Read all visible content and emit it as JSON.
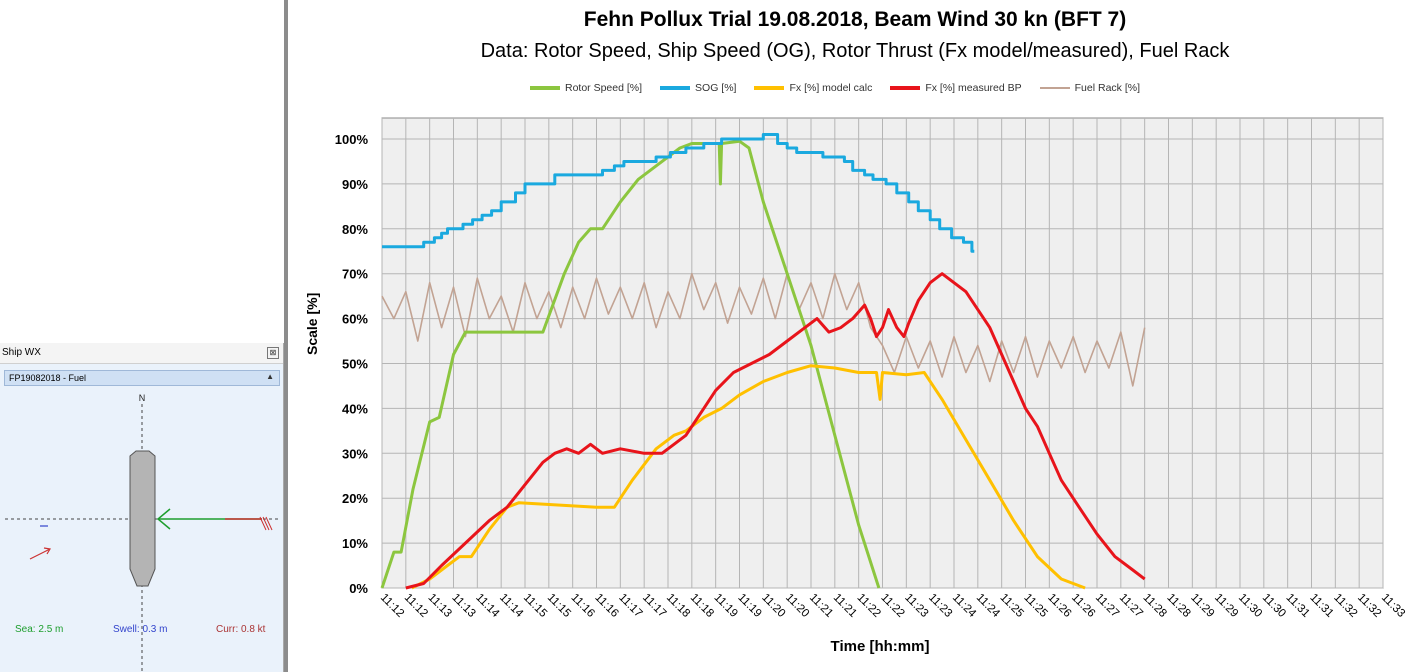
{
  "panel": {
    "title": "Ship WX",
    "close_glyph": "⊠",
    "dropdown_value": "FP19082018 - Fuel",
    "north_label": "N",
    "sea": "Sea: 2.5 m",
    "swell": "Swell: 0.3 m",
    "curr": "Curr: 0.8 kt"
  },
  "chart_data": {
    "type": "line",
    "title": "Fehn Pollux Trial 19.08.2018, Beam Wind 30 kn (BFT 7)",
    "subtitle": "Data: Rotor Speed, Ship Speed (OG), Rotor Thrust (Fx model/measured), Fuel Rack",
    "xlabel": "Time [hh:mm]",
    "ylabel": "Scale [%]",
    "ylim": [
      0,
      100
    ],
    "yticks": [
      "0%",
      "10%",
      "20%",
      "30%",
      "40%",
      "50%",
      "60%",
      "70%",
      "80%",
      "90%",
      "100%"
    ],
    "xticks": [
      "11:12",
      "11:12",
      "11:13",
      "11:13",
      "11:14",
      "11:14",
      "11:15",
      "11:15",
      "11:16",
      "11:16",
      "11:17",
      "11:17",
      "11:18",
      "11:18",
      "11:19",
      "11:19",
      "11:20",
      "11:20",
      "11:21",
      "11:21",
      "11:22",
      "11:22",
      "11:23",
      "11:23",
      "11:24",
      "11:24",
      "11:25",
      "11:25",
      "11:26",
      "11:26",
      "11:27",
      "11:27",
      "11:28",
      "11:28",
      "11:29",
      "11:29",
      "11:30",
      "11:30",
      "11:31",
      "11:31",
      "11:32",
      "11:32",
      "11:33"
    ],
    "grid": true,
    "legend_position": "top",
    "series": [
      {
        "name": "Rotor Speed [%]",
        "color": "#8cc63f",
        "points": [
          [
            0,
            0
          ],
          [
            1,
            8
          ],
          [
            1.6,
            8
          ],
          [
            2.6,
            22
          ],
          [
            4,
            37
          ],
          [
            4.8,
            38
          ],
          [
            6,
            52
          ],
          [
            7,
            57
          ],
          [
            10,
            57
          ],
          [
            13.5,
            57
          ],
          [
            15.3,
            70
          ],
          [
            16.5,
            77
          ],
          [
            17.5,
            80
          ],
          [
            18.5,
            80
          ],
          [
            20,
            86
          ],
          [
            21.5,
            91
          ],
          [
            23,
            94
          ],
          [
            25,
            98
          ],
          [
            26,
            99
          ],
          [
            27.5,
            99
          ],
          [
            28.3,
            99
          ],
          [
            28.4,
            90
          ],
          [
            28.5,
            99
          ],
          [
            30,
            99.5
          ],
          [
            30.8,
            98
          ],
          [
            32,
            86
          ],
          [
            34,
            70
          ],
          [
            36,
            54
          ],
          [
            38,
            34
          ],
          [
            40,
            14
          ],
          [
            41.7,
            0
          ]
        ]
      },
      {
        "name": "SOG [%]",
        "color": "#1aa9df",
        "points": [
          [
            0,
            76
          ],
          [
            3.5,
            76
          ],
          [
            3.5,
            77
          ],
          [
            4.4,
            77
          ],
          [
            4.4,
            78
          ],
          [
            5,
            78
          ],
          [
            5,
            79
          ],
          [
            5.5,
            79
          ],
          [
            5.5,
            80
          ],
          [
            6.8,
            80
          ],
          [
            6.8,
            81
          ],
          [
            7.6,
            81
          ],
          [
            7.6,
            82
          ],
          [
            8.4,
            82
          ],
          [
            8.4,
            83
          ],
          [
            9.2,
            83
          ],
          [
            9.2,
            84
          ],
          [
            10,
            84
          ],
          [
            10,
            86
          ],
          [
            11.2,
            86
          ],
          [
            11.2,
            88
          ],
          [
            12,
            88
          ],
          [
            12,
            90
          ],
          [
            14.5,
            90
          ],
          [
            14.5,
            92
          ],
          [
            18.5,
            92
          ],
          [
            18.5,
            93
          ],
          [
            19.5,
            93
          ],
          [
            19.5,
            94
          ],
          [
            20.3,
            94
          ],
          [
            20.3,
            95
          ],
          [
            23,
            95
          ],
          [
            23,
            96
          ],
          [
            24.2,
            96
          ],
          [
            24.2,
            97
          ],
          [
            25.5,
            97
          ],
          [
            25.5,
            98
          ],
          [
            27,
            98
          ],
          [
            27,
            99
          ],
          [
            28.5,
            99
          ],
          [
            28.5,
            100
          ],
          [
            32,
            100
          ],
          [
            32,
            101
          ],
          [
            33.2,
            101
          ],
          [
            33.2,
            99
          ],
          [
            34,
            99
          ],
          [
            34,
            98
          ],
          [
            34.8,
            98
          ],
          [
            34.8,
            97
          ],
          [
            37,
            97
          ],
          [
            37,
            96
          ],
          [
            38.8,
            96
          ],
          [
            38.8,
            95
          ],
          [
            39.5,
            95
          ],
          [
            39.5,
            93
          ],
          [
            40.5,
            93
          ],
          [
            40.5,
            92
          ],
          [
            41.2,
            92
          ],
          [
            41.2,
            91
          ],
          [
            42.3,
            91
          ],
          [
            42.3,
            90
          ],
          [
            43.2,
            90
          ],
          [
            43.2,
            88
          ],
          [
            44.2,
            88
          ],
          [
            44.2,
            86
          ],
          [
            45,
            86
          ],
          [
            45,
            84
          ],
          [
            46,
            84
          ],
          [
            46,
            82
          ],
          [
            46.8,
            82
          ],
          [
            46.8,
            80
          ],
          [
            47.8,
            80
          ],
          [
            47.8,
            78
          ],
          [
            48.8,
            78
          ],
          [
            48.8,
            77
          ],
          [
            49.5,
            77
          ],
          [
            49.5,
            75
          ],
          [
            49.7,
            75
          ]
        ]
      },
      {
        "name": "Fx [%] model calc",
        "color": "#ffc000",
        "points": [
          [
            2.5,
            0
          ],
          [
            4,
            2
          ],
          [
            5.5,
            5
          ],
          [
            6.5,
            7
          ],
          [
            7.5,
            7
          ],
          [
            9,
            13
          ],
          [
            10.5,
            18
          ],
          [
            11.5,
            19
          ],
          [
            18,
            18
          ],
          [
            19.5,
            18
          ],
          [
            21,
            24
          ],
          [
            23,
            31
          ],
          [
            24.5,
            34
          ],
          [
            25.5,
            35
          ],
          [
            27,
            38
          ],
          [
            28.5,
            40
          ],
          [
            30,
            43
          ],
          [
            32,
            46
          ],
          [
            34,
            48
          ],
          [
            36,
            49.5
          ],
          [
            38,
            49
          ],
          [
            40,
            48
          ],
          [
            41.5,
            48
          ],
          [
            41.8,
            42
          ],
          [
            42,
            48
          ],
          [
            44,
            47.5
          ],
          [
            45.5,
            48
          ],
          [
            47,
            42
          ],
          [
            49,
            33
          ],
          [
            51,
            24
          ],
          [
            53,
            15
          ],
          [
            55,
            7
          ],
          [
            57,
            2
          ],
          [
            59,
            0
          ]
        ]
      },
      {
        "name": "Fx [%] measured BP",
        "color": "#e8141b",
        "points": [
          [
            2,
            0
          ],
          [
            3.5,
            1
          ],
          [
            5,
            5
          ],
          [
            7,
            10
          ],
          [
            9,
            15
          ],
          [
            10.5,
            18
          ],
          [
            12,
            23
          ],
          [
            13.5,
            28
          ],
          [
            14.5,
            30
          ],
          [
            15.5,
            31
          ],
          [
            16.5,
            30
          ],
          [
            17.5,
            32
          ],
          [
            18.5,
            30
          ],
          [
            20,
            31
          ],
          [
            22,
            30
          ],
          [
            23.5,
            30
          ],
          [
            24.5,
            32
          ],
          [
            25.5,
            34
          ],
          [
            27,
            40
          ],
          [
            28,
            44
          ],
          [
            29.5,
            48
          ],
          [
            31,
            50
          ],
          [
            32.5,
            52
          ],
          [
            34,
            55
          ],
          [
            35.5,
            58
          ],
          [
            36.5,
            60
          ],
          [
            37.5,
            57
          ],
          [
            38.5,
            58
          ],
          [
            39.5,
            60
          ],
          [
            40.5,
            63
          ],
          [
            41,
            60
          ],
          [
            41.5,
            56
          ],
          [
            42,
            58
          ],
          [
            42.5,
            62
          ],
          [
            43.2,
            58
          ],
          [
            43.8,
            56
          ],
          [
            44.2,
            59
          ],
          [
            45,
            64
          ],
          [
            46,
            68
          ],
          [
            47,
            70
          ],
          [
            48,
            68
          ],
          [
            49,
            66
          ],
          [
            50,
            62
          ],
          [
            51,
            58
          ],
          [
            52,
            52
          ],
          [
            53,
            46
          ],
          [
            54,
            40
          ],
          [
            55,
            36
          ],
          [
            56,
            30
          ],
          [
            57,
            24
          ],
          [
            58.5,
            18
          ],
          [
            60,
            12
          ],
          [
            61.5,
            7
          ],
          [
            63,
            4
          ],
          [
            64,
            2
          ]
        ]
      },
      {
        "name": "Fuel Rack [%]",
        "color": "#c2a393",
        "points": [
          [
            0,
            65
          ],
          [
            1,
            60
          ],
          [
            2,
            66
          ],
          [
            3,
            55
          ],
          [
            4,
            68
          ],
          [
            5,
            58
          ],
          [
            6,
            67
          ],
          [
            7,
            56
          ],
          [
            8,
            69
          ],
          [
            9,
            60
          ],
          [
            10,
            65
          ],
          [
            11,
            57
          ],
          [
            12,
            68
          ],
          [
            13,
            60
          ],
          [
            14,
            66
          ],
          [
            15,
            58
          ],
          [
            16,
            67
          ],
          [
            17,
            60
          ],
          [
            18,
            69
          ],
          [
            19,
            61
          ],
          [
            20,
            67
          ],
          [
            21,
            60
          ],
          [
            22,
            68
          ],
          [
            23,
            58
          ],
          [
            24,
            66
          ],
          [
            25,
            60
          ],
          [
            26,
            70
          ],
          [
            27,
            62
          ],
          [
            28,
            68
          ],
          [
            29,
            59
          ],
          [
            30,
            67
          ],
          [
            31,
            61
          ],
          [
            32,
            69
          ],
          [
            33,
            60
          ],
          [
            34,
            70
          ],
          [
            35,
            62
          ],
          [
            36,
            68
          ],
          [
            37,
            60
          ],
          [
            38,
            70
          ],
          [
            39,
            62
          ],
          [
            40,
            68
          ],
          [
            41,
            58
          ],
          [
            42,
            54
          ],
          [
            43,
            48
          ],
          [
            44,
            56
          ],
          [
            45,
            49
          ],
          [
            46,
            55
          ],
          [
            47,
            47
          ],
          [
            48,
            56
          ],
          [
            49,
            48
          ],
          [
            50,
            54
          ],
          [
            51,
            46
          ],
          [
            52,
            55
          ],
          [
            53,
            48
          ],
          [
            54,
            56
          ],
          [
            55,
            47
          ],
          [
            56,
            55
          ],
          [
            57,
            49
          ],
          [
            58,
            56
          ],
          [
            59,
            48
          ],
          [
            60,
            55
          ],
          [
            61,
            49
          ],
          [
            62,
            57
          ],
          [
            63,
            45
          ],
          [
            64,
            58
          ]
        ]
      }
    ]
  }
}
